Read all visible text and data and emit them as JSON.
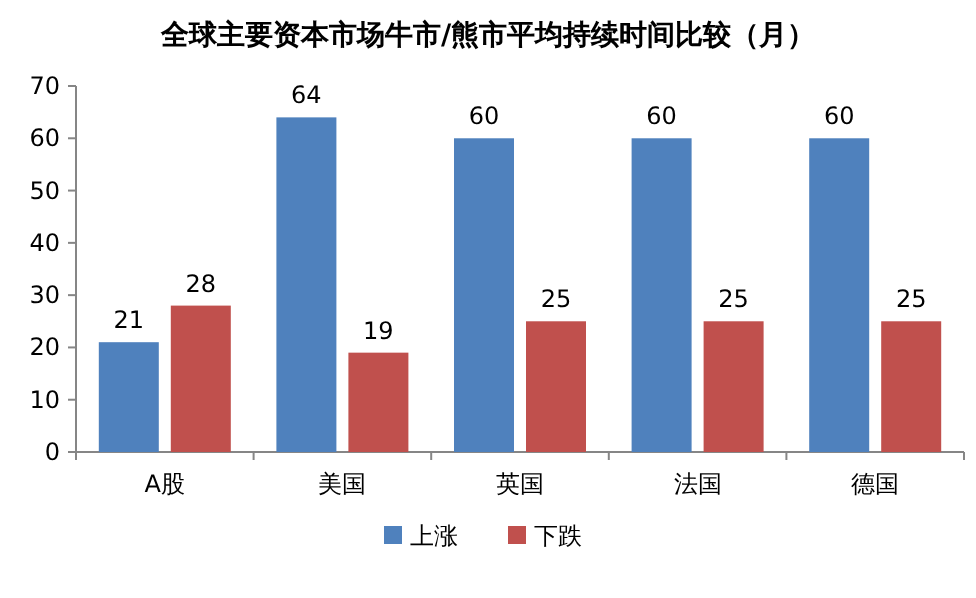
{
  "chart_data": {
    "type": "bar",
    "title": "全球主要资本市场牛市/熊市平均持续时间比较（月）",
    "categories": [
      "A股",
      "美国",
      "英国",
      "法国",
      "德国"
    ],
    "series": [
      {
        "name": "上涨",
        "color": "#4f81bd",
        "values": [
          21,
          64,
          60,
          60,
          60
        ]
      },
      {
        "name": "下跌",
        "color": "#c0504d",
        "values": [
          28,
          19,
          25,
          25,
          25
        ]
      }
    ],
    "ylim": [
      0,
      70
    ],
    "yticks": [
      0,
      10,
      20,
      30,
      40,
      50,
      60,
      70
    ],
    "data_labels": true,
    "legend": "bottom"
  }
}
